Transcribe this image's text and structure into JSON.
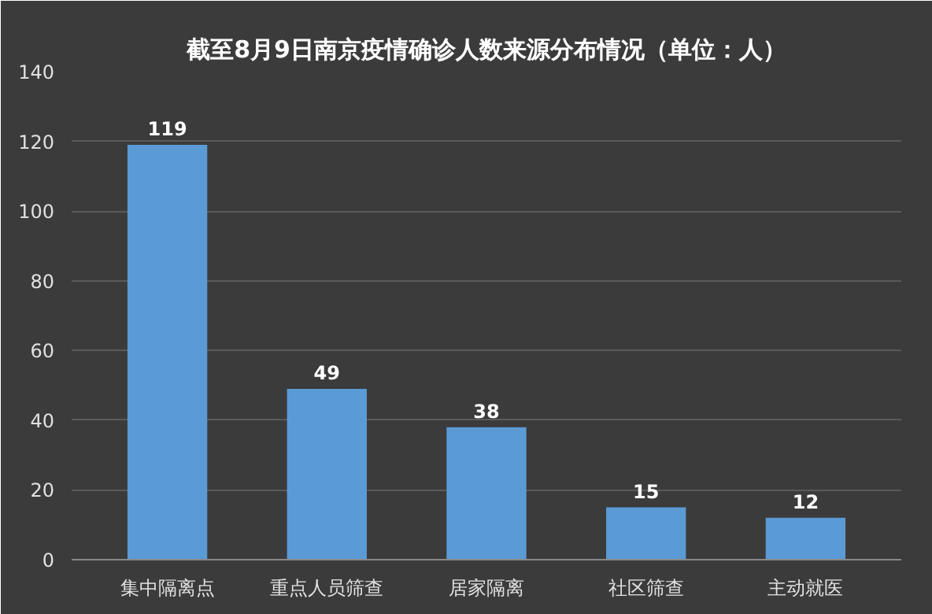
{
  "chart_data": {
    "type": "bar",
    "title": "截至8月9日南京疫情确诊人数来源分布情况（单位：人）",
    "categories": [
      "集中隔离点",
      "重点人员筛查",
      "居家隔离",
      "社区筛查",
      "主动就医"
    ],
    "values": [
      119,
      49,
      38,
      15,
      12
    ],
    "color": "#5b9bd5",
    "ylim": [
      0,
      140
    ],
    "yticks": [
      0,
      20,
      40,
      60,
      80,
      100,
      120,
      140
    ],
    "grid": "y",
    "data_labels": true
  }
}
